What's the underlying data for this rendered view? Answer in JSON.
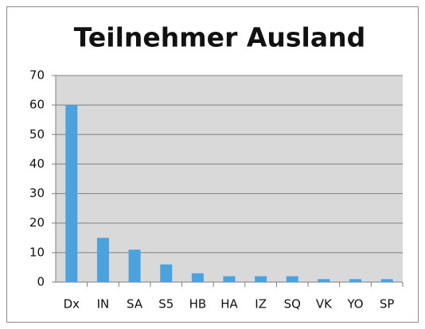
{
  "chart_data": {
    "type": "bar",
    "title": "Teilnehmer Ausland",
    "categories": [
      "Dx",
      "IN",
      "SA",
      "S5",
      "HB",
      "HA",
      "IZ",
      "SQ",
      "VK",
      "YO",
      "SP"
    ],
    "values": [
      60,
      15,
      11,
      6,
      3,
      2,
      2,
      2,
      1,
      1,
      1
    ],
    "color": "#4aa3df",
    "ylim": [
      0,
      70
    ],
    "yticks": [
      0,
      10,
      20,
      30,
      40,
      50,
      60,
      70
    ],
    "grid": true
  }
}
